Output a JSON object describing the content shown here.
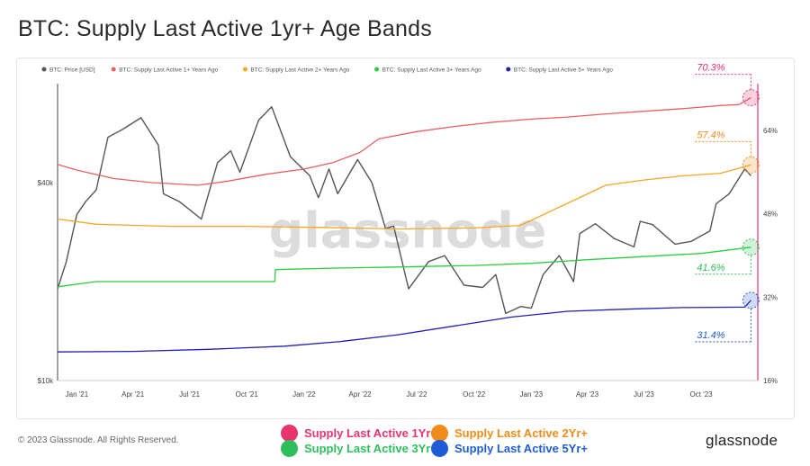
{
  "title": "BTC: Supply Last Active 1yr+ Age Bands",
  "copyright": "© 2023 Glassnode. All Rights Reserved.",
  "brand": "glassnode",
  "watermark": "glassnode",
  "colors": {
    "price": "#555555",
    "s1": "#e8615f",
    "s2": "#f5a623",
    "s3": "#2ecc40",
    "s5": "#1f1fb4",
    "pink": "#e8336f",
    "orange": "#f08c1a",
    "green": "#2ebf5c",
    "blue": "#1f5cd6"
  },
  "legend": [
    {
      "name": "BTC: Price [USD]",
      "color": "#555555"
    },
    {
      "name": "BTC: Supply Last Active 1+ Years Ago",
      "color": "#e8615f"
    },
    {
      "name": "BTC: Supply Last Active 2+ Years Ago",
      "color": "#f5a623"
    },
    {
      "name": "BTC: Supply Last Active 3+ Years Ago",
      "color": "#2ecc40"
    },
    {
      "name": "BTC: Supply Last Active 5+ Years Ago",
      "color": "#1f1fb4"
    }
  ],
  "bottom_legend": [
    {
      "label": "Supply Last Active 1Yr+",
      "color": "#e8336f"
    },
    {
      "label": "Supply Last Active 2Yr+",
      "color": "#f08c1a"
    },
    {
      "label": "Supply Last Active 3Yr+",
      "color": "#2ebf5c"
    },
    {
      "label": "Supply Last Active 5Yr+",
      "color": "#1f5cd6"
    }
  ],
  "chart_data": {
    "type": "line",
    "x_ticks": [
      "Jan '21",
      "Apr '21",
      "Jul '21",
      "Oct '21",
      "Jan '22",
      "Apr '22",
      "Jul '22",
      "Oct '22",
      "Jan '23",
      "Apr '23",
      "Jul '23",
      "Oct '23"
    ],
    "x_range": [
      "2020-12-01",
      "2023-12-31"
    ],
    "y_left": {
      "label": "",
      "ticks": [
        "$10k",
        "$40k"
      ],
      "tick_values": [
        10000,
        40000
      ],
      "scale": "log",
      "range": [
        10000,
        80000
      ]
    },
    "y_right": {
      "label": "",
      "ticks": [
        "16%",
        "32%",
        "48%",
        "64%"
      ],
      "tick_values": [
        16,
        32,
        48,
        64
      ],
      "range": [
        16,
        73
      ]
    },
    "series": [
      {
        "name": "BTC: Price [USD]",
        "axis": "left",
        "x": [
          "2020-12-01",
          "2020-12-15",
          "2021-01-01",
          "2021-01-15",
          "2021-02-01",
          "2021-02-20",
          "2021-03-15",
          "2021-04-14",
          "2021-05-12",
          "2021-05-20",
          "2021-06-15",
          "2021-07-20",
          "2021-08-15",
          "2021-09-05",
          "2021-09-20",
          "2021-10-20",
          "2021-11-10",
          "2021-12-10",
          "2022-01-10",
          "2022-01-24",
          "2022-02-10",
          "2022-02-24",
          "2022-03-28",
          "2022-04-20",
          "2022-05-12",
          "2022-05-25",
          "2022-06-18",
          "2022-07-20",
          "2022-08-15",
          "2022-09-15",
          "2022-10-15",
          "2022-11-05",
          "2022-11-21",
          "2022-12-15",
          "2023-01-01",
          "2023-01-20",
          "2023-02-15",
          "2023-03-10",
          "2023-03-20",
          "2023-04-14",
          "2023-05-15",
          "2023-06-15",
          "2023-06-25",
          "2023-07-15",
          "2023-08-20",
          "2023-09-15",
          "2023-10-15",
          "2023-10-25",
          "2023-11-15",
          "2023-12-10",
          "2023-12-20"
        ],
        "y": [
          19000,
          23000,
          32000,
          35000,
          38000,
          55000,
          58000,
          63000,
          52000,
          37000,
          35000,
          31000,
          46000,
          50000,
          43000,
          62000,
          68000,
          48000,
          42000,
          36000,
          44000,
          37000,
          47000,
          40000,
          29000,
          29500,
          19000,
          23000,
          24000,
          19500,
          19200,
          21000,
          16000,
          16800,
          16600,
          21000,
          24000,
          20000,
          28000,
          30000,
          27000,
          25500,
          30500,
          29800,
          26000,
          26500,
          28500,
          34500,
          37000,
          44000,
          42000
        ]
      },
      {
        "name": "BTC: Supply Last Active 1+ Years Ago",
        "axis": "right",
        "x": [
          "2020-12-01",
          "2021-01-01",
          "2021-03-01",
          "2021-05-01",
          "2021-07-15",
          "2021-09-01",
          "2021-11-01",
          "2022-01-01",
          "2022-02-15",
          "2022-04-01",
          "2022-05-01",
          "2022-07-01",
          "2022-09-01",
          "2022-11-01",
          "2023-01-01",
          "2023-03-01",
          "2023-05-01",
          "2023-07-01",
          "2023-09-01",
          "2023-11-01",
          "2023-12-01",
          "2023-12-20"
        ],
        "y": [
          57.5,
          56.4,
          54.8,
          54.0,
          53.5,
          54.3,
          55.6,
          56.6,
          57.8,
          59.8,
          62.4,
          63.8,
          64.8,
          65.6,
          66.2,
          66.6,
          67.2,
          67.7,
          68.2,
          68.8,
          69.0,
          70.3
        ]
      },
      {
        "name": "BTC: Supply Last Active 2+ Years Ago",
        "axis": "right",
        "x": [
          "2020-12-01",
          "2021-02-01",
          "2021-06-01",
          "2021-10-01",
          "2022-02-01",
          "2022-06-01",
          "2022-10-01",
          "2022-12-15",
          "2023-02-01",
          "2023-05-01",
          "2023-07-01",
          "2023-09-01",
          "2023-11-01",
          "2023-12-20"
        ],
        "y": [
          47.0,
          46.0,
          45.6,
          45.6,
          45.4,
          45.1,
          45.3,
          45.8,
          48.5,
          53.5,
          54.5,
          55.3,
          55.8,
          57.4
        ]
      },
      {
        "name": "BTC: Supply Last Active 3+ Years Ago",
        "axis": "right",
        "x": [
          "2020-12-01",
          "2021-02-01",
          "2021-06-01",
          "2021-10-01",
          "2021-11-15",
          "2021-11-16",
          "2022-03-01",
          "2022-06-01",
          "2022-10-01",
          "2023-01-01",
          "2023-04-01",
          "2023-07-01",
          "2023-10-01",
          "2023-12-20"
        ],
        "y": [
          34.0,
          35.0,
          35.0,
          35.0,
          35.0,
          37.3,
          37.6,
          37.8,
          38.1,
          38.5,
          39.2,
          39.8,
          40.4,
          41.6
        ]
      },
      {
        "name": "BTC: Supply Last Active 5+ Years Ago",
        "axis": "right",
        "x": [
          "2020-12-01",
          "2021-04-01",
          "2021-08-01",
          "2021-12-01",
          "2022-03-01",
          "2022-06-01",
          "2022-09-01",
          "2022-12-01",
          "2023-03-01",
          "2023-06-01",
          "2023-09-01",
          "2023-12-10",
          "2023-12-20"
        ],
        "y": [
          21.5,
          21.6,
          22.0,
          22.6,
          23.5,
          24.8,
          26.5,
          28.2,
          29.3,
          29.7,
          30.0,
          30.1,
          31.4
        ]
      }
    ],
    "annotations": [
      {
        "text": "70.3%",
        "color": "#e8336f"
      },
      {
        "text": "57.4%",
        "color": "#f08c1a"
      },
      {
        "text": "41.6%",
        "color": "#2ebf5c"
      },
      {
        "text": "31.4%",
        "color": "#1f5cd6"
      }
    ],
    "legend_position": "top-left",
    "grid": false
  }
}
